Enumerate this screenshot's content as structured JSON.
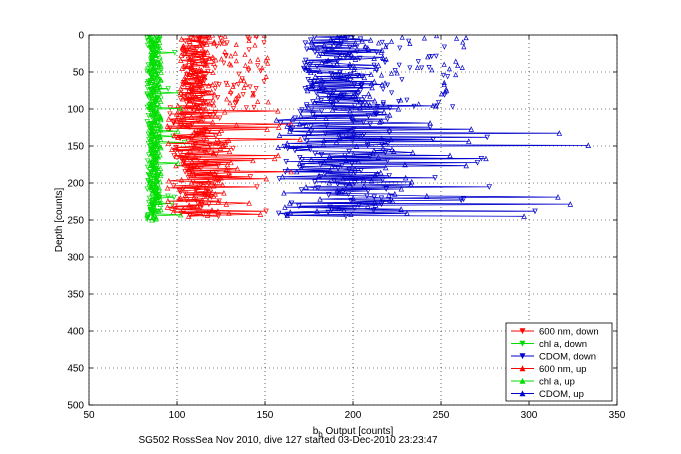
{
  "chart_data": {
    "type": "line",
    "xlabel_main": "b",
    "xlabel_sub": "b",
    "xlabel_rest": " Output [counts]",
    "ylabel": "Depth [counts]",
    "caption": "SG502 RossSea Nov 2010, dive 127 started 03-Dec-2010 23:23:47",
    "xlim": [
      50,
      350
    ],
    "ylim": [
      0,
      500
    ],
    "y_reversed": true,
    "xticks": [
      50,
      100,
      150,
      200,
      250,
      300,
      350
    ],
    "yticks": [
      0,
      50,
      100,
      150,
      200,
      250,
      300,
      350,
      400,
      450,
      500
    ],
    "grid": true,
    "legend_position": "bottom-right",
    "series": [
      {
        "name": "600 nm, down",
        "color": "#ff0000",
        "marker": "triangle-down",
        "base": 110,
        "spread": 8,
        "start": 0,
        "end": 245
      },
      {
        "name": "chl a, down",
        "color": "#00dd00",
        "marker": "triangle-down",
        "base": 86,
        "spread": 3,
        "start": 0,
        "end": 250
      },
      {
        "name": "CDOM, down",
        "color": "#0000cc",
        "marker": "triangle-down",
        "base": 190,
        "spread": 18,
        "start": 0,
        "end": 245
      },
      {
        "name": "600 nm, up",
        "color": "#ff0000",
        "marker": "triangle-up",
        "base": 112,
        "spread": 10,
        "start": 0,
        "end": 245
      },
      {
        "name": "chl a, up",
        "color": "#00dd00",
        "marker": "triangle-up",
        "base": 88,
        "spread": 3,
        "start": 0,
        "end": 250
      },
      {
        "name": "CDOM, up",
        "color": "#0000cc",
        "marker": "triangle-up",
        "base": 195,
        "spread": 22,
        "start": 0,
        "end": 245
      }
    ]
  }
}
